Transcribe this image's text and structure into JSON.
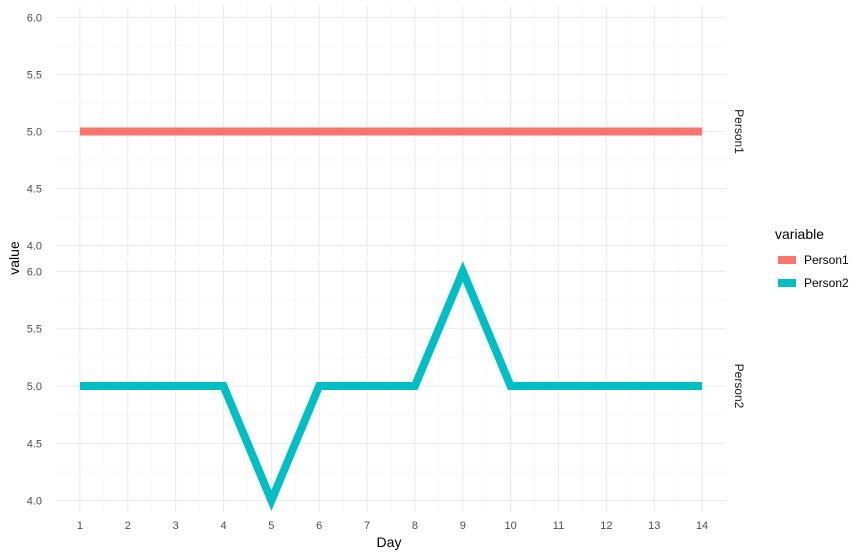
{
  "chart_data": {
    "type": "line",
    "facet_by": "variable",
    "xlabel": "Day",
    "ylabel": "value",
    "x": [
      1,
      2,
      3,
      4,
      5,
      6,
      7,
      8,
      9,
      10,
      11,
      12,
      13,
      14
    ],
    "xlim": [
      0.5,
      14.5
    ],
    "ylim": [
      3.9,
      6.1
    ],
    "y_ticks": [
      4.0,
      4.5,
      5.0,
      5.5,
      6.0
    ],
    "x_ticks": [
      1,
      2,
      3,
      4,
      5,
      6,
      7,
      8,
      9,
      10,
      11,
      12,
      13,
      14
    ],
    "grid": true,
    "legend": {
      "title": "variable",
      "position": "right"
    },
    "series": [
      {
        "name": "Person1",
        "color": "#F8766D",
        "values": [
          5,
          5,
          5,
          5,
          5,
          5,
          5,
          5,
          5,
          5,
          5,
          5,
          5,
          5
        ]
      },
      {
        "name": "Person2",
        "color": "#00BFC4",
        "values": [
          5,
          5,
          5,
          5,
          4,
          5,
          5,
          5,
          6,
          5,
          5,
          5,
          5,
          5
        ]
      }
    ]
  }
}
